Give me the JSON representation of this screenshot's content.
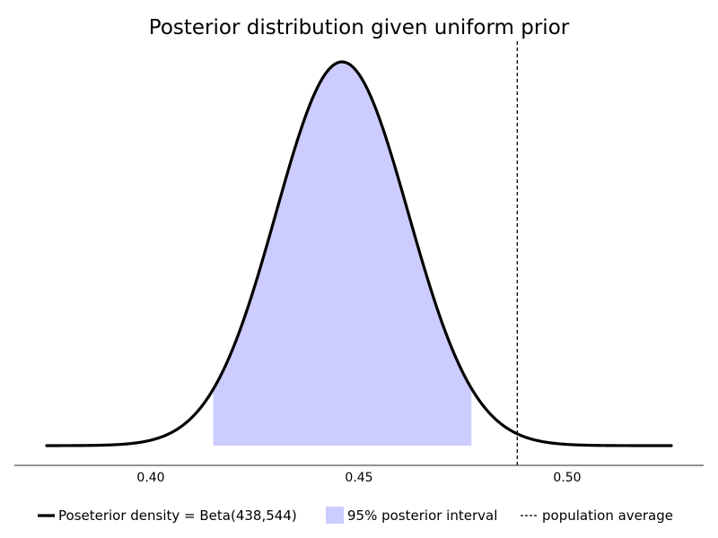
{
  "chart_data": {
    "type": "area",
    "title": "Posterior distribution given uniform prior",
    "xlabel": "",
    "ylabel": "",
    "xlim": [
      0.375,
      0.525
    ],
    "grid": false,
    "y_axis_visible": false,
    "x_ticks": [
      {
        "value": 0.4,
        "label": "0.40"
      },
      {
        "value": 0.45,
        "label": "0.45"
      },
      {
        "value": 0.5,
        "label": "0.50"
      }
    ],
    "distribution": {
      "family": "Beta",
      "alpha": 438,
      "beta": 544
    },
    "interval": {
      "low": 0.415,
      "high": 0.477
    },
    "population_average": 0.488,
    "legend_position": "bottom",
    "legend": [
      {
        "kind": "line",
        "label": "Poseterior density = Beta(438,544)",
        "color": "#000000"
      },
      {
        "kind": "patch",
        "label": "95% posterior interval",
        "color": "#ccccff"
      },
      {
        "kind": "dashed",
        "label": "population average",
        "color": "#000000"
      }
    ],
    "colors": {
      "density_line": "#000000",
      "interval_fill": "#ccccff",
      "axis": "#555555"
    }
  }
}
